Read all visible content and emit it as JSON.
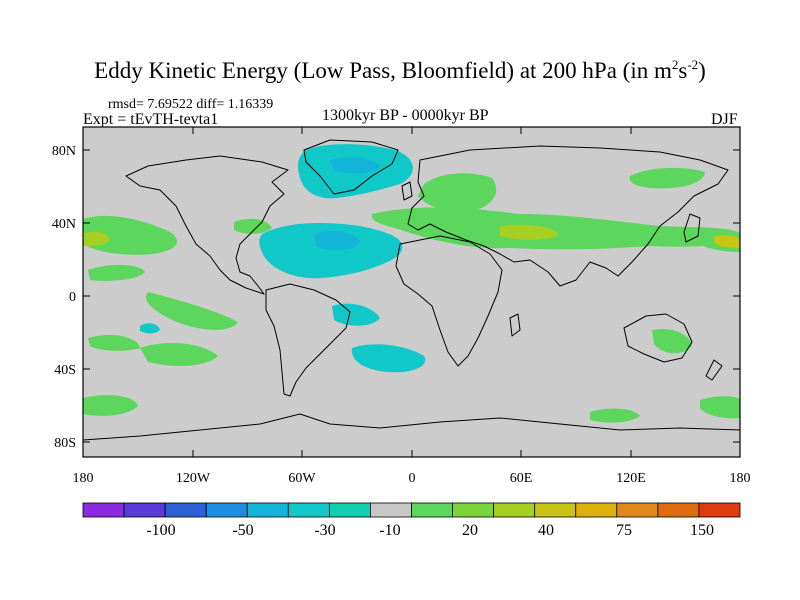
{
  "title": {
    "main": "Eddy Kinetic Energy (Low Pass, Bloomfield) at 200 hPa (in m",
    "sup1": "2",
    "mid": "s",
    "sup2": "-2",
    "close": ")"
  },
  "stats": "rmsd= 7.69522 diff= 1.16339",
  "expt": "Expt = tEvTH-tevta1",
  "period": "1300kyr BP - 0000kyr BP",
  "season": "DJF",
  "y_ticks": [
    "80N",
    "40N",
    "0",
    "40S",
    "80S"
  ],
  "x_ticks": [
    "180",
    "120W",
    "60W",
    "0",
    "60E",
    "120E",
    "180"
  ],
  "colorbar": {
    "colors": [
      "#8a2be2",
      "#5a3ad8",
      "#2f5fd8",
      "#1f8ee0",
      "#12b4d8",
      "#10c8c8",
      "#0fd0b0",
      "#c8c8c8",
      "#5cd65c",
      "#7ad43a",
      "#a6cf22",
      "#c8c414",
      "#dcb20a",
      "#e08a18",
      "#e06a10",
      "#e03a10"
    ],
    "labels": [
      "-100",
      "-50",
      "-30",
      "-10",
      "20",
      "40",
      "75",
      "150"
    ]
  },
  "chart_data": {
    "type": "contour-map",
    "title": "Eddy Kinetic Energy (Low Pass, Bloomfield) at 200 hPa (in m2s-2)",
    "field": "Eddy kinetic energy difference",
    "units": "m2 s-2",
    "level": "200 hPa",
    "season": "DJF",
    "period": "1300kyr BP - 0000kyr BP",
    "rmsd": 7.69522,
    "diff": 1.16339,
    "lon_range": [
      -180,
      180
    ],
    "lat_range": [
      -90,
      90
    ],
    "contour_levels": [
      -100,
      -50,
      -30,
      -10,
      20,
      40,
      75,
      150
    ],
    "anomalies": [
      {
        "region": "North Atlantic / Greenland",
        "lon": -35,
        "lat": 65,
        "sign": "negative"
      },
      {
        "region": "Central North Atlantic",
        "lon": -45,
        "lat": 30,
        "sign": "negative"
      },
      {
        "region": "South Atlantic off Brazil",
        "lon": -25,
        "lat": -3,
        "sign": "negative"
      },
      {
        "region": "South Atlantic",
        "lon": -30,
        "lat": -35,
        "sign": "negative"
      },
      {
        "region": "Eurasia / Mediterranean to East Asia",
        "lon": 60,
        "lat": 35,
        "sign": "positive"
      },
      {
        "region": "North Pacific (west of Americas)",
        "lon": -165,
        "lat": 35,
        "sign": "positive"
      },
      {
        "region": "Southeast Pacific",
        "lon": -115,
        "lat": -10,
        "sign": "positive"
      },
      {
        "region": "South Pacific",
        "lon": -160,
        "lat": -30,
        "sign": "positive"
      },
      {
        "region": "Southern Ocean",
        "lon": 160,
        "lat": -60,
        "sign": "positive"
      }
    ]
  }
}
